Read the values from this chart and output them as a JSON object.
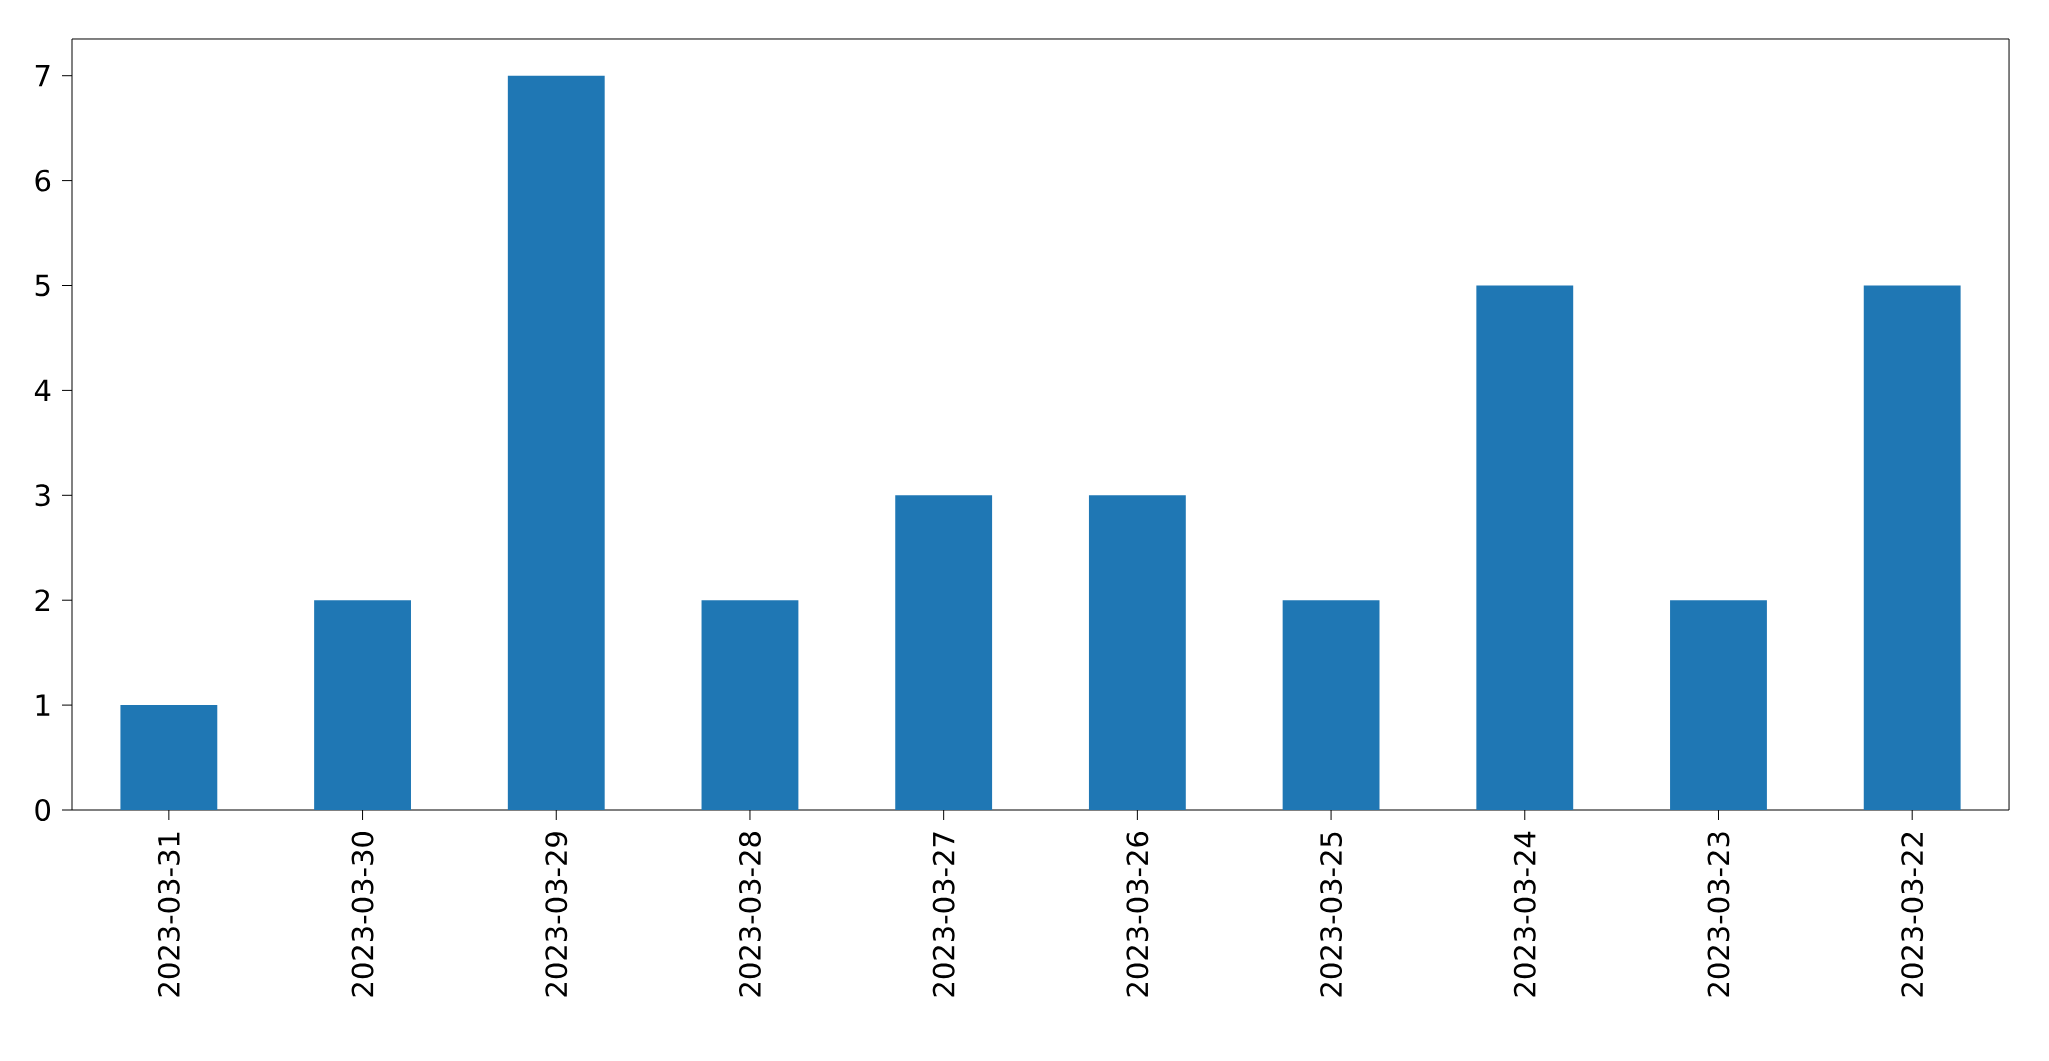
{
  "chart_data": {
    "type": "bar",
    "categories": [
      "2023-03-31",
      "2023-03-30",
      "2023-03-29",
      "2023-03-28",
      "2023-03-27",
      "2023-03-26",
      "2023-03-25",
      "2023-03-24",
      "2023-03-23",
      "2023-03-22"
    ],
    "values": [
      1,
      2,
      7,
      2,
      3,
      3,
      2,
      5,
      2,
      5
    ],
    "color": "#1f77b4",
    "ylim": [
      0,
      7.35
    ],
    "yticks": [
      0,
      1,
      2,
      3,
      4,
      5,
      6,
      7
    ]
  }
}
